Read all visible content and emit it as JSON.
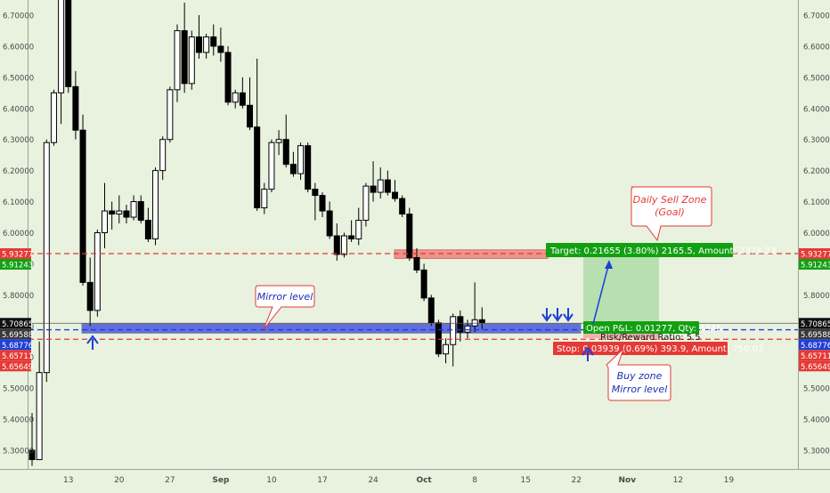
{
  "chart_data": {
    "type": "candlestick",
    "title": "",
    "xlabel": "",
    "ylabel": "",
    "ylim": [
      5.245,
      6.74
    ],
    "y_ticks": [
      5.3,
      5.4,
      5.5,
      5.6,
      5.7,
      5.8,
      5.9,
      6.0,
      6.1,
      6.2,
      6.3,
      6.4,
      6.5,
      6.6,
      6.7
    ],
    "y_tick_labels": [
      "5.30000",
      "5.40000",
      "5.50000",
      "5.60000",
      "5.70000",
      "5.80000",
      "5.90000",
      "6.00000",
      "6.10000",
      "6.20000",
      "6.30000",
      "6.40000",
      "6.50000",
      "6.60000",
      "6.70000"
    ],
    "x_tick_labels": [
      "13",
      "20",
      "27",
      "Sep",
      "10",
      "17",
      "24",
      "Oct",
      "8",
      "15",
      "22",
      "Nov",
      "12",
      "19"
    ],
    "x_tick_index": [
      5,
      12,
      19,
      26,
      33,
      40,
      47,
      54,
      61,
      68,
      75,
      82,
      89,
      96
    ],
    "grid": false,
    "colors": {
      "background": "#e8f2de",
      "up_candle": "#ffffff",
      "down_candle": "#000000",
      "red_line": "#e53935",
      "blue_line": "#1e3fd8",
      "green_label": "#12a012"
    },
    "candles": [
      {
        "o": 5.3,
        "h": 5.42,
        "l": 5.25,
        "c": 5.27
      },
      {
        "o": 5.27,
        "h": 5.65,
        "l": 5.27,
        "c": 5.55
      },
      {
        "o": 5.55,
        "h": 6.3,
        "l": 5.52,
        "c": 6.29
      },
      {
        "o": 6.29,
        "h": 6.46,
        "l": 6.28,
        "c": 6.45
      },
      {
        "o": 6.45,
        "h": 6.8,
        "l": 6.35,
        "c": 6.78
      },
      {
        "o": 6.78,
        "h": 6.8,
        "l": 6.45,
        "c": 6.47
      },
      {
        "o": 6.47,
        "h": 6.52,
        "l": 6.3,
        "c": 6.33
      },
      {
        "o": 6.33,
        "h": 6.38,
        "l": 5.83,
        "c": 5.84
      },
      {
        "o": 5.84,
        "h": 5.92,
        "l": 5.7,
        "c": 5.75
      },
      {
        "o": 5.75,
        "h": 6.01,
        "l": 5.73,
        "c": 6.0
      },
      {
        "o": 6.0,
        "h": 6.16,
        "l": 5.95,
        "c": 6.07
      },
      {
        "o": 6.07,
        "h": 6.1,
        "l": 6.01,
        "c": 6.06
      },
      {
        "o": 6.06,
        "h": 6.12,
        "l": 6.03,
        "c": 6.07
      },
      {
        "o": 6.07,
        "h": 6.09,
        "l": 6.03,
        "c": 6.05
      },
      {
        "o": 6.05,
        "h": 6.12,
        "l": 6.04,
        "c": 6.1
      },
      {
        "o": 6.1,
        "h": 6.12,
        "l": 6.03,
        "c": 6.04
      },
      {
        "o": 6.04,
        "h": 6.08,
        "l": 5.97,
        "c": 5.98
      },
      {
        "o": 5.98,
        "h": 6.21,
        "l": 5.96,
        "c": 6.2
      },
      {
        "o": 6.2,
        "h": 6.31,
        "l": 6.17,
        "c": 6.3
      },
      {
        "o": 6.3,
        "h": 6.47,
        "l": 6.29,
        "c": 6.46
      },
      {
        "o": 6.46,
        "h": 6.67,
        "l": 6.42,
        "c": 6.65
      },
      {
        "o": 6.65,
        "h": 6.74,
        "l": 6.45,
        "c": 6.48
      },
      {
        "o": 6.48,
        "h": 6.65,
        "l": 6.46,
        "c": 6.63
      },
      {
        "o": 6.63,
        "h": 6.7,
        "l": 6.56,
        "c": 6.58
      },
      {
        "o": 6.58,
        "h": 6.64,
        "l": 6.56,
        "c": 6.63
      },
      {
        "o": 6.63,
        "h": 6.67,
        "l": 6.57,
        "c": 6.6
      },
      {
        "o": 6.6,
        "h": 6.66,
        "l": 6.55,
        "c": 6.58
      },
      {
        "o": 6.58,
        "h": 6.6,
        "l": 6.41,
        "c": 6.42
      },
      {
        "o": 6.42,
        "h": 6.46,
        "l": 6.4,
        "c": 6.45
      },
      {
        "o": 6.45,
        "h": 6.5,
        "l": 6.4,
        "c": 6.41
      },
      {
        "o": 6.41,
        "h": 6.5,
        "l": 6.33,
        "c": 6.34
      },
      {
        "o": 6.34,
        "h": 6.56,
        "l": 6.07,
        "c": 6.08
      },
      {
        "o": 6.08,
        "h": 6.16,
        "l": 6.06,
        "c": 6.14
      },
      {
        "o": 6.14,
        "h": 6.3,
        "l": 6.13,
        "c": 6.29
      },
      {
        "o": 6.29,
        "h": 6.33,
        "l": 6.25,
        "c": 6.3
      },
      {
        "o": 6.3,
        "h": 6.38,
        "l": 6.21,
        "c": 6.22
      },
      {
        "o": 6.22,
        "h": 6.26,
        "l": 6.18,
        "c": 6.19
      },
      {
        "o": 6.19,
        "h": 6.29,
        "l": 6.17,
        "c": 6.28
      },
      {
        "o": 6.28,
        "h": 6.29,
        "l": 6.13,
        "c": 6.14
      },
      {
        "o": 6.14,
        "h": 6.16,
        "l": 6.04,
        "c": 6.12
      },
      {
        "o": 6.12,
        "h": 6.13,
        "l": 6.05,
        "c": 6.07
      },
      {
        "o": 6.07,
        "h": 6.1,
        "l": 5.98,
        "c": 5.99
      },
      {
        "o": 5.99,
        "h": 6.03,
        "l": 5.91,
        "c": 5.93
      },
      {
        "o": 5.93,
        "h": 6.0,
        "l": 5.92,
        "c": 5.99
      },
      {
        "o": 5.99,
        "h": 6.04,
        "l": 5.97,
        "c": 5.98
      },
      {
        "o": 5.98,
        "h": 6.08,
        "l": 5.96,
        "c": 6.04
      },
      {
        "o": 6.04,
        "h": 6.16,
        "l": 6.02,
        "c": 6.15
      },
      {
        "o": 6.15,
        "h": 6.23,
        "l": 6.1,
        "c": 6.13
      },
      {
        "o": 6.13,
        "h": 6.21,
        "l": 6.11,
        "c": 6.17
      },
      {
        "o": 6.17,
        "h": 6.2,
        "l": 6.12,
        "c": 6.13
      },
      {
        "o": 6.13,
        "h": 6.17,
        "l": 6.1,
        "c": 6.11
      },
      {
        "o": 6.11,
        "h": 6.12,
        "l": 6.05,
        "c": 6.06
      },
      {
        "o": 6.06,
        "h": 6.08,
        "l": 5.91,
        "c": 5.92
      },
      {
        "o": 5.92,
        "h": 5.95,
        "l": 5.87,
        "c": 5.88
      },
      {
        "o": 5.88,
        "h": 5.9,
        "l": 5.78,
        "c": 5.79
      },
      {
        "o": 5.79,
        "h": 5.8,
        "l": 5.7,
        "c": 5.71
      },
      {
        "o": 5.71,
        "h": 5.72,
        "l": 5.6,
        "c": 5.61
      },
      {
        "o": 5.61,
        "h": 5.66,
        "l": 5.58,
        "c": 5.64
      },
      {
        "o": 5.64,
        "h": 5.74,
        "l": 5.57,
        "c": 5.73
      },
      {
        "o": 5.73,
        "h": 5.75,
        "l": 5.65,
        "c": 5.68
      },
      {
        "o": 5.68,
        "h": 5.72,
        "l": 5.66,
        "c": 5.7
      },
      {
        "o": 5.7,
        "h": 5.84,
        "l": 5.68,
        "c": 5.72
      },
      {
        "o": 5.72,
        "h": 5.76,
        "l": 5.69,
        "c": 5.71
      }
    ],
    "candle_start_index": 0,
    "price_labels": [
      {
        "text": "5.93277",
        "value": 5.93277,
        "color": "#e53935"
      },
      {
        "text": "5.91243",
        "value": 5.91243,
        "color": "#12a012"
      },
      {
        "text": "5.70865",
        "value": 5.70865,
        "color": "#111111"
      },
      {
        "text": "5.69588",
        "value": 5.69588,
        "color": "#3a3a3a"
      },
      {
        "text": "5.68776",
        "value": 5.68776,
        "color": "#1e3fd8"
      },
      {
        "text": "5.65711",
        "value": 5.65711,
        "color": "#e53935"
      },
      {
        "text": "5.65649",
        "value": 5.65649,
        "color": "#e53935"
      }
    ],
    "lines": {
      "target": 5.93277,
      "entry": 5.68776,
      "stop": 5.65711,
      "last_close": 5.70865
    },
    "zones": {
      "mirror_level": {
        "from": 5.677,
        "to": 5.707
      },
      "daily_sell_zone": {
        "from": 5.917,
        "to": 5.945
      }
    }
  },
  "annotations": {
    "mirror_level": "Mirror level",
    "daily_sell_zone_line1": "Daily Sell Zone",
    "daily_sell_zone_line2": "(Goal)",
    "buy_zone_line1": "Buy zone",
    "buy_zone_line2": "Mirror level",
    "target_label": "Target: 0.21655 (3.80%) 2165.5, Amount: 2374.23",
    "open_pl_label": "Open P&L: 0.01277, Qty: 6346",
    "risk_reward_label": "Risk/Reward Ratio: 5.5",
    "stop_label": "Stop: 0.03939 (0.69%) 393.9, Amount: 750.03"
  }
}
